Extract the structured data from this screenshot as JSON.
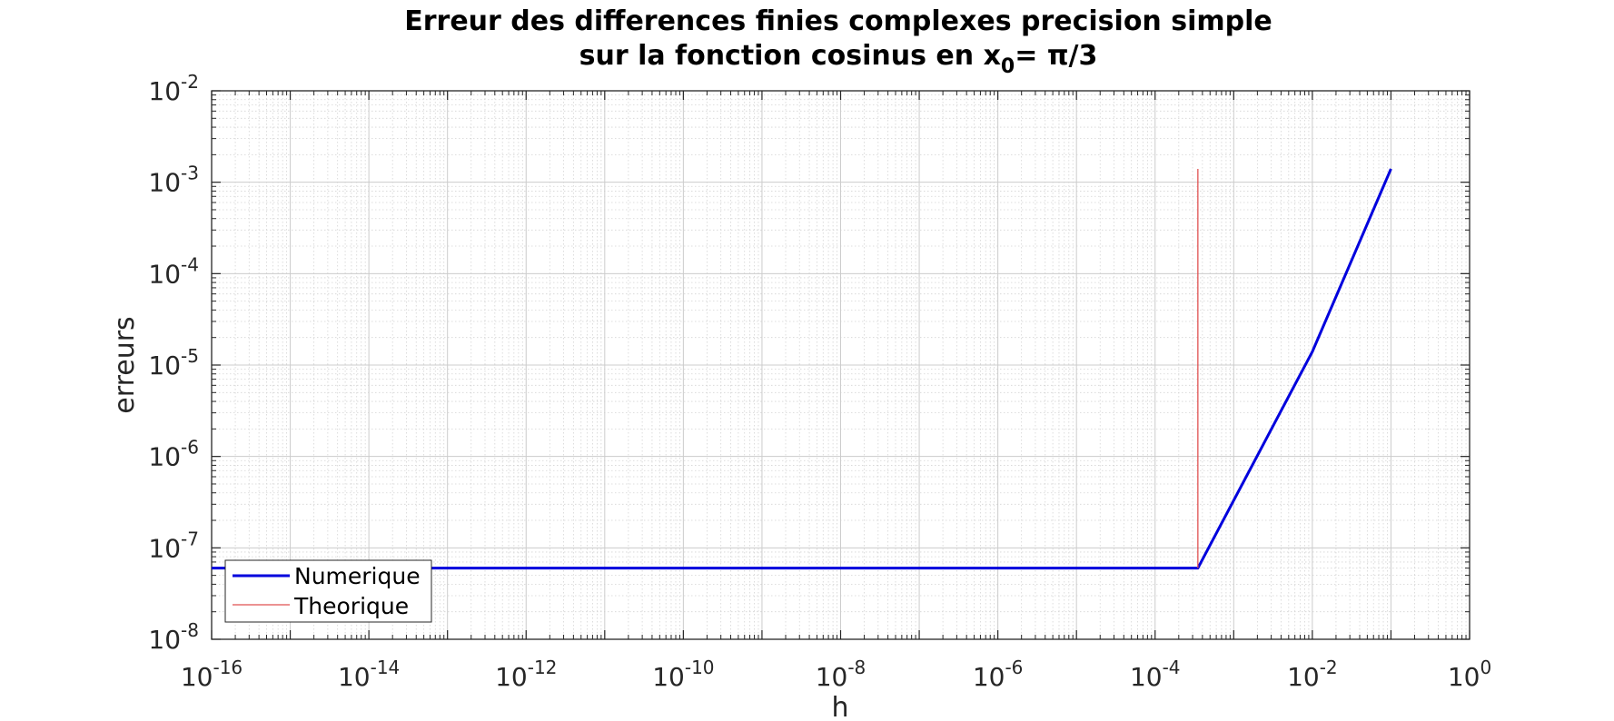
{
  "chart_data": {
    "type": "line",
    "title_line1": "Erreur des differences finies complexes precision simple",
    "title_line2_prefix": "sur la fonction cosinus en x",
    "title_line2_sub": "0",
    "title_line2_suffix": "= π/3",
    "xlabel": "h",
    "ylabel": "erreurs",
    "xscale": "log",
    "yscale": "log",
    "xlim": [
      1e-16,
      1
    ],
    "ylim": [
      1e-08,
      0.01
    ],
    "grid": true,
    "minor_grid": true,
    "legend_position": "bottom-left",
    "x_ticks": [
      {
        "exp": -16,
        "base": "10",
        "sup": "-16"
      },
      {
        "exp": -14,
        "base": "10",
        "sup": "-14"
      },
      {
        "exp": -12,
        "base": "10",
        "sup": "-12"
      },
      {
        "exp": -10,
        "base": "10",
        "sup": "-10"
      },
      {
        "exp": -8,
        "base": "10",
        "sup": "-8"
      },
      {
        "exp": -6,
        "base": "10",
        "sup": "-6"
      },
      {
        "exp": -4,
        "base": "10",
        "sup": "-4"
      },
      {
        "exp": -2,
        "base": "10",
        "sup": "-2"
      },
      {
        "exp": 0,
        "base": "10",
        "sup": "0"
      }
    ],
    "y_ticks": [
      {
        "exp": -8,
        "base": "10",
        "sup": "-8"
      },
      {
        "exp": -7,
        "base": "10",
        "sup": "-7"
      },
      {
        "exp": -6,
        "base": "10",
        "sup": "-6"
      },
      {
        "exp": -5,
        "base": "10",
        "sup": "-5"
      },
      {
        "exp": -4,
        "base": "10",
        "sup": "-4"
      },
      {
        "exp": -3,
        "base": "10",
        "sup": "-3"
      },
      {
        "exp": -2,
        "base": "10",
        "sup": "-2"
      }
    ],
    "series": [
      {
        "name": "Numerique",
        "color": "#0000dd",
        "x": [
          1e-16,
          0.00035,
          0.01,
          0.1
        ],
        "y": [
          6e-08,
          6e-08,
          1.4e-05,
          0.0014
        ]
      },
      {
        "name": "Theorique",
        "color": "#e05050",
        "x": [
          0.00035,
          0.00035
        ],
        "y": [
          6e-08,
          0.0014
        ]
      }
    ]
  }
}
